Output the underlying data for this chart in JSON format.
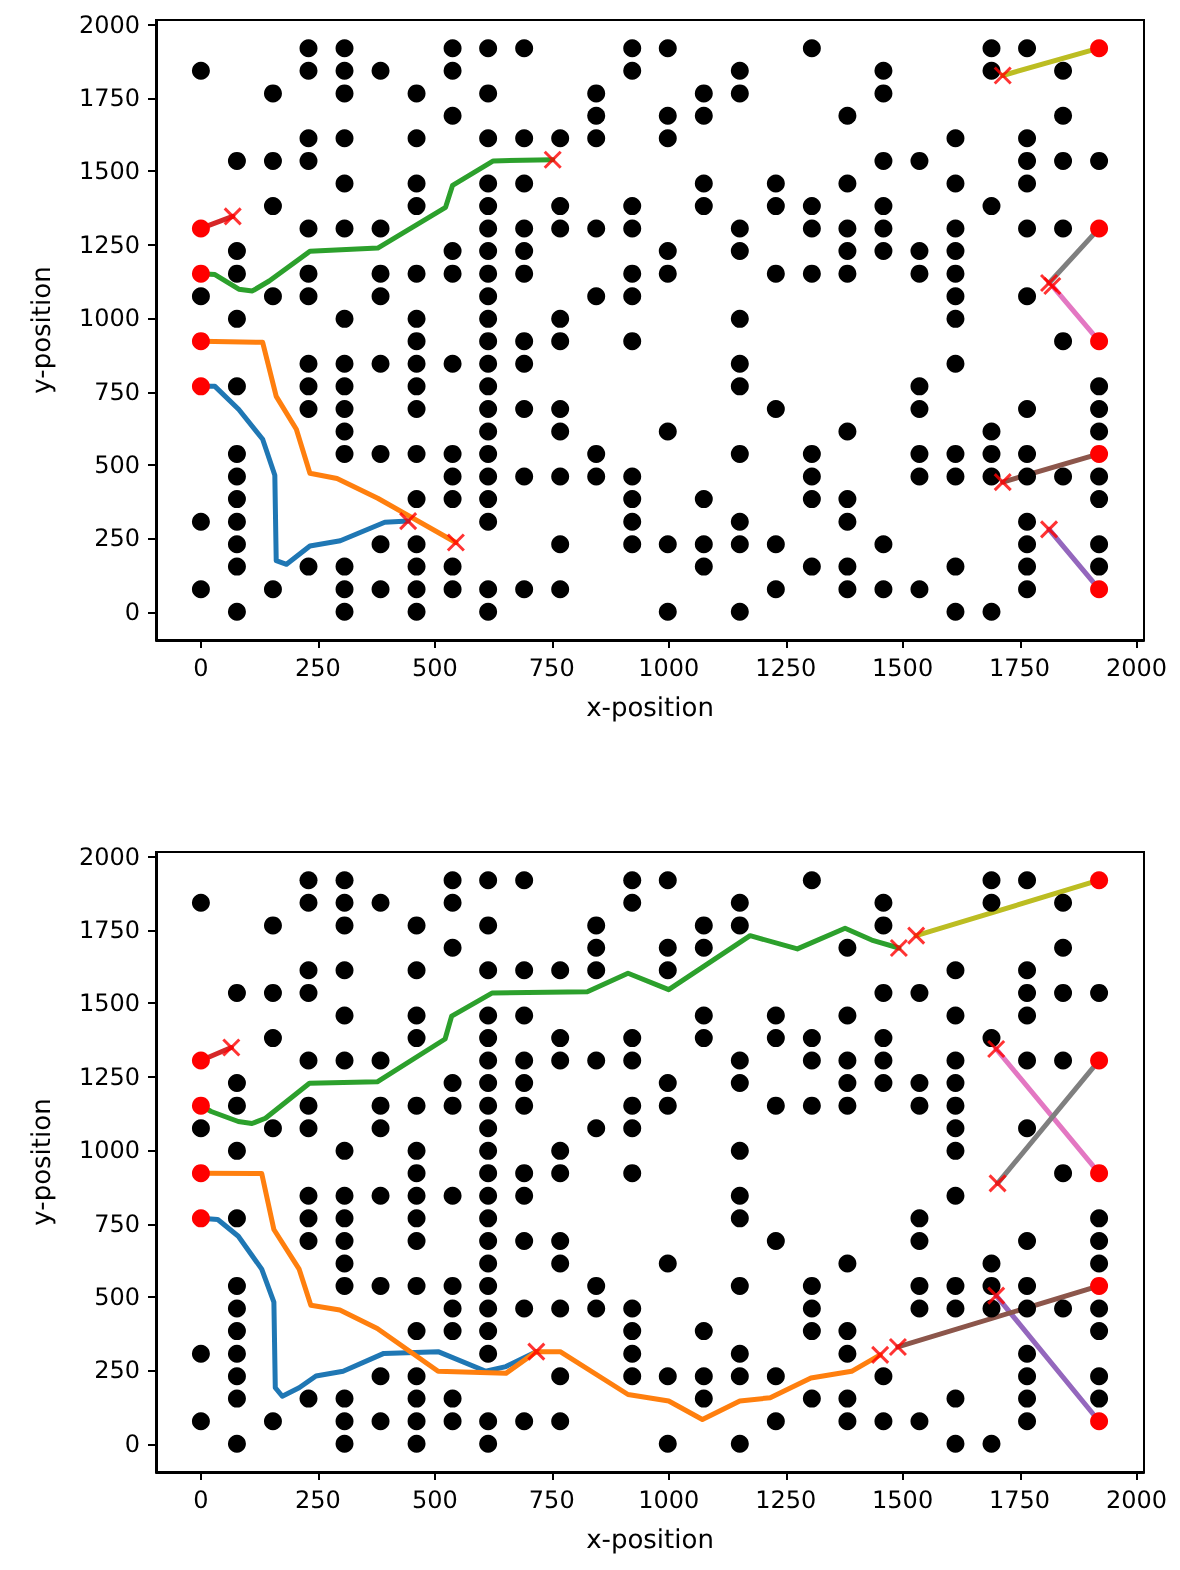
{
  "chart_data": [
    {
      "type": "scatter",
      "xlabel": "x-position",
      "ylabel": "y-position",
      "xlim": [
        -96,
        2016
      ],
      "ylim": [
        -96,
        2016
      ],
      "xticks": [
        0,
        250,
        500,
        750,
        1000,
        1250,
        1500,
        1750,
        2000
      ],
      "yticks": [
        0,
        250,
        500,
        750,
        1000,
        1250,
        1500,
        1750,
        2000
      ],
      "line_style": "solid",
      "series": [
        {
          "type": "scatter",
          "marker": "circle",
          "color": "#000000",
          "x": [
            230,
            307,
            538,
            614,
            691,
            922,
            998,
            1306,
            1690,
            1766,
            0,
            230,
            307,
            384,
            538,
            922,
            1152,
            1459,
            1690,
            1843,
            154,
            307,
            461,
            614,
            845,
            1075,
            1152,
            1459,
            538,
            845,
            998,
            1075,
            1382,
            1843,
            230,
            307,
            461,
            614,
            691,
            768,
            845,
            998,
            1613,
            1766,
            77,
            154,
            230,
            1459,
            1536,
            1766,
            1843,
            1920,
            307,
            461,
            614,
            691,
            1075,
            1229,
            1382,
            1613,
            1766,
            154,
            461,
            614,
            768,
            922,
            1075,
            1229,
            1306,
            1459,
            1690,
            230,
            307,
            384,
            614,
            691,
            768,
            845,
            922,
            1152,
            1306,
            1382,
            1459,
            1613,
            1766,
            1843,
            77,
            538,
            614,
            691,
            998,
            1152,
            1382,
            1459,
            1536,
            1613,
            77,
            230,
            384,
            461,
            538,
            614,
            691,
            922,
            998,
            1229,
            1306,
            1382,
            1536,
            1613,
            0,
            154,
            230,
            384,
            614,
            845,
            922,
            1613,
            1766,
            77,
            307,
            461,
            614,
            768,
            1152,
            1613,
            461,
            614,
            691,
            768,
            922,
            1843,
            230,
            307,
            384,
            461,
            538,
            614,
            691,
            1152,
            1613,
            77,
            230,
            307,
            461,
            614,
            1152,
            1536,
            1920,
            230,
            307,
            461,
            614,
            691,
            768,
            1229,
            1536,
            1766,
            1920,
            307,
            614,
            768,
            998,
            1382,
            1690,
            1920,
            77,
            307,
            384,
            461,
            538,
            614,
            845,
            1152,
            1306,
            1536,
            1613,
            1690,
            1766,
            77,
            538,
            614,
            691,
            768,
            845,
            922,
            1306,
            1536,
            1613,
            1690,
            1766,
            1843,
            1920,
            77,
            461,
            538,
            614,
            922,
            1075,
            1306,
            1382,
            1920,
            0,
            77,
            614,
            922,
            1152,
            1382,
            1766,
            77,
            384,
            461,
            768,
            922,
            998,
            1075,
            1152,
            1229,
            1459,
            1766,
            1920,
            77,
            230,
            307,
            461,
            538,
            1075,
            1306,
            1382,
            1613,
            1766,
            1920,
            0,
            154,
            307,
            384,
            461,
            538,
            614,
            691,
            768,
            1229,
            1382,
            1459,
            1536,
            1766,
            77,
            307,
            461,
            614,
            998,
            1152,
            1613,
            1690
          ],
          "values": [
            1920,
            1920,
            1920,
            1920,
            1920,
            1920,
            1920,
            1920,
            1920,
            1920,
            1843,
            1843,
            1843,
            1843,
            1843,
            1843,
            1843,
            1843,
            1843,
            1843,
            1766,
            1766,
            1766,
            1766,
            1766,
            1766,
            1766,
            1766,
            1690,
            1690,
            1690,
            1690,
            1690,
            1690,
            1613,
            1613,
            1613,
            1613,
            1613,
            1613,
            1613,
            1613,
            1613,
            1613,
            1536,
            1536,
            1536,
            1536,
            1536,
            1536,
            1536,
            1536,
            1459,
            1459,
            1459,
            1459,
            1459,
            1459,
            1459,
            1459,
            1459,
            1382,
            1382,
            1382,
            1382,
            1382,
            1382,
            1382,
            1382,
            1382,
            1382,
            1306,
            1306,
            1306,
            1306,
            1306,
            1306,
            1306,
            1306,
            1306,
            1306,
            1306,
            1306,
            1306,
            1306,
            1306,
            1229,
            1229,
            1229,
            1229,
            1229,
            1229,
            1229,
            1229,
            1229,
            1229,
            1152,
            1152,
            1152,
            1152,
            1152,
            1152,
            1152,
            1152,
            1152,
            1152,
            1152,
            1152,
            1152,
            1152,
            1075,
            1075,
            1075,
            1075,
            1075,
            1075,
            1075,
            1075,
            1075,
            998,
            998,
            998,
            998,
            998,
            998,
            998,
            922,
            922,
            922,
            922,
            922,
            922,
            845,
            845,
            845,
            845,
            845,
            845,
            845,
            845,
            845,
            768,
            768,
            768,
            768,
            768,
            768,
            768,
            768,
            691,
            691,
            691,
            691,
            691,
            691,
            691,
            691,
            691,
            691,
            614,
            614,
            614,
            614,
            614,
            614,
            614,
            538,
            538,
            538,
            538,
            538,
            538,
            538,
            538,
            538,
            538,
            538,
            538,
            538,
            461,
            461,
            461,
            461,
            461,
            461,
            461,
            461,
            461,
            461,
            461,
            461,
            461,
            461,
            384,
            384,
            384,
            384,
            384,
            384,
            384,
            384,
            384,
            307,
            307,
            307,
            307,
            307,
            307,
            307,
            230,
            230,
            230,
            230,
            230,
            230,
            230,
            230,
            230,
            230,
            230,
            230,
            154,
            154,
            154,
            154,
            154,
            154,
            154,
            154,
            154,
            154,
            154,
            77,
            77,
            77,
            77,
            77,
            77,
            77,
            77,
            77,
            77,
            77,
            77,
            77,
            77,
            0,
            0,
            0,
            0,
            0,
            0,
            0,
            0
          ]
        },
        {
          "type": "line",
          "color": "#1f77b4",
          "x": [
            0,
            30,
            81,
            132,
            158,
            161,
            183,
            233,
            298,
            393,
            443
          ],
          "values": [
            768,
            768,
            689,
            588,
            465,
            174,
            162,
            224,
            242,
            305,
            309
          ]
        },
        {
          "type": "line",
          "color": "#ff7f0e",
          "x": [
            0,
            132,
            161,
            204,
            233,
            291,
            378,
            545
          ],
          "values": [
            922,
            918,
            734,
            622,
            472,
            454,
            387,
            236
          ]
        },
        {
          "type": "line",
          "color": "#2ca02c",
          "x": [
            0,
            30,
            81,
            110,
            146,
            233,
            378,
            523,
            538,
            625,
            752
          ],
          "values": [
            1152,
            1149,
            1099,
            1093,
            1127,
            1228,
            1239,
            1378,
            1453,
            1536,
            1540
          ]
        },
        {
          "type": "line",
          "color": "#d62728",
          "x": [
            0,
            68
          ],
          "values": [
            1306,
            1347
          ]
        },
        {
          "type": "line",
          "color": "#9467bd",
          "x": [
            1920,
            1813
          ],
          "values": [
            77,
            281
          ]
        },
        {
          "type": "line",
          "color": "#8c564b",
          "x": [
            1920,
            1714
          ],
          "values": [
            538,
            442
          ]
        },
        {
          "type": "line",
          "color": "#e377c2",
          "x": [
            1920,
            1820
          ],
          "values": [
            922,
            1110
          ]
        },
        {
          "type": "line",
          "color": "#7f7f7f",
          "x": [
            1920,
            1813
          ],
          "values": [
            1306,
            1120
          ]
        },
        {
          "type": "line",
          "color": "#bcbd22",
          "x": [
            1920,
            1714
          ],
          "values": [
            1920,
            1827
          ]
        },
        {
          "type": "scatter",
          "marker": "circle",
          "color": "#ff0000",
          "x": [
            0,
            0,
            0,
            0,
            1920,
            1920,
            1920,
            1920,
            1920
          ],
          "values": [
            1306,
            1152,
            922,
            768,
            1920,
            1306,
            922,
            538,
            77
          ]
        },
        {
          "type": "scatter",
          "marker": "cross",
          "color": "#ff0000",
          "x": [
            68,
            752,
            443,
            545,
            1714,
            1813,
            1820,
            1714,
            1813
          ],
          "values": [
            1347,
            1540,
            309,
            236,
            1827,
            1120,
            1110,
            442,
            281
          ]
        }
      ]
    },
    {
      "type": "scatter",
      "xlabel": "x-position",
      "ylabel": "y-position",
      "xlim": [
        -96,
        2016
      ],
      "ylim": [
        -96,
        2016
      ],
      "xticks": [
        0,
        250,
        500,
        750,
        1000,
        1250,
        1500,
        1750,
        2000
      ],
      "yticks": [
        0,
        250,
        500,
        750,
        1000,
        1250,
        1500,
        1750,
        2000
      ],
      "line_style": "solid",
      "series": [
        {
          "type": "scatter",
          "marker": "circle",
          "color": "#000000",
          "x": [
            230,
            307,
            538,
            614,
            691,
            922,
            998,
            1306,
            1690,
            1766,
            0,
            230,
            307,
            384,
            538,
            922,
            1152,
            1459,
            1690,
            1843,
            154,
            307,
            461,
            614,
            845,
            1075,
            1152,
            1459,
            538,
            845,
            998,
            1075,
            1382,
            1843,
            230,
            307,
            461,
            614,
            691,
            768,
            845,
            998,
            1613,
            1766,
            77,
            154,
            230,
            1459,
            1536,
            1766,
            1843,
            1920,
            307,
            461,
            614,
            691,
            1075,
            1229,
            1382,
            1613,
            1766,
            154,
            461,
            614,
            768,
            922,
            1075,
            1229,
            1306,
            1459,
            1690,
            230,
            307,
            384,
            614,
            691,
            768,
            845,
            922,
            1152,
            1306,
            1382,
            1459,
            1613,
            1766,
            1843,
            77,
            538,
            614,
            691,
            998,
            1152,
            1382,
            1459,
            1536,
            1613,
            77,
            230,
            384,
            461,
            538,
            614,
            691,
            922,
            998,
            1229,
            1306,
            1382,
            1536,
            1613,
            0,
            154,
            230,
            384,
            614,
            845,
            922,
            1613,
            1766,
            77,
            307,
            461,
            614,
            768,
            1152,
            1613,
            461,
            614,
            691,
            768,
            922,
            1843,
            230,
            307,
            384,
            461,
            538,
            614,
            691,
            1152,
            1613,
            77,
            230,
            307,
            461,
            614,
            1152,
            1536,
            1920,
            230,
            307,
            461,
            614,
            691,
            768,
            1229,
            1536,
            1766,
            1920,
            307,
            614,
            768,
            998,
            1382,
            1690,
            1920,
            77,
            307,
            384,
            461,
            538,
            614,
            845,
            1152,
            1306,
            1536,
            1613,
            1690,
            1766,
            77,
            538,
            614,
            691,
            768,
            845,
            922,
            1306,
            1536,
            1613,
            1690,
            1766,
            1843,
            1920,
            77,
            461,
            538,
            614,
            922,
            1075,
            1306,
            1382,
            1920,
            0,
            77,
            614,
            922,
            1152,
            1382,
            1766,
            77,
            384,
            461,
            768,
            922,
            998,
            1075,
            1152,
            1229,
            1459,
            1766,
            1920,
            77,
            230,
            307,
            461,
            538,
            1075,
            1306,
            1382,
            1613,
            1766,
            1920,
            0,
            154,
            307,
            384,
            461,
            538,
            614,
            691,
            768,
            1229,
            1382,
            1459,
            1536,
            1766,
            77,
            307,
            461,
            614,
            998,
            1152,
            1613,
            1690
          ],
          "values": [
            1920,
            1920,
            1920,
            1920,
            1920,
            1920,
            1920,
            1920,
            1920,
            1920,
            1843,
            1843,
            1843,
            1843,
            1843,
            1843,
            1843,
            1843,
            1843,
            1843,
            1766,
            1766,
            1766,
            1766,
            1766,
            1766,
            1766,
            1766,
            1690,
            1690,
            1690,
            1690,
            1690,
            1690,
            1613,
            1613,
            1613,
            1613,
            1613,
            1613,
            1613,
            1613,
            1613,
            1613,
            1536,
            1536,
            1536,
            1536,
            1536,
            1536,
            1536,
            1536,
            1459,
            1459,
            1459,
            1459,
            1459,
            1459,
            1459,
            1459,
            1459,
            1382,
            1382,
            1382,
            1382,
            1382,
            1382,
            1382,
            1382,
            1382,
            1382,
            1306,
            1306,
            1306,
            1306,
            1306,
            1306,
            1306,
            1306,
            1306,
            1306,
            1306,
            1306,
            1306,
            1306,
            1306,
            1229,
            1229,
            1229,
            1229,
            1229,
            1229,
            1229,
            1229,
            1229,
            1229,
            1152,
            1152,
            1152,
            1152,
            1152,
            1152,
            1152,
            1152,
            1152,
            1152,
            1152,
            1152,
            1152,
            1152,
            1075,
            1075,
            1075,
            1075,
            1075,
            1075,
            1075,
            1075,
            1075,
            998,
            998,
            998,
            998,
            998,
            998,
            998,
            922,
            922,
            922,
            922,
            922,
            922,
            845,
            845,
            845,
            845,
            845,
            845,
            845,
            845,
            845,
            768,
            768,
            768,
            768,
            768,
            768,
            768,
            768,
            691,
            691,
            691,
            691,
            691,
            691,
            691,
            691,
            691,
            691,
            614,
            614,
            614,
            614,
            614,
            614,
            614,
            538,
            538,
            538,
            538,
            538,
            538,
            538,
            538,
            538,
            538,
            538,
            538,
            538,
            461,
            461,
            461,
            461,
            461,
            461,
            461,
            461,
            461,
            461,
            461,
            461,
            461,
            461,
            384,
            384,
            384,
            384,
            384,
            384,
            384,
            384,
            384,
            307,
            307,
            307,
            307,
            307,
            307,
            307,
            230,
            230,
            230,
            230,
            230,
            230,
            230,
            230,
            230,
            230,
            230,
            230,
            154,
            154,
            154,
            154,
            154,
            154,
            154,
            154,
            154,
            154,
            154,
            77,
            77,
            77,
            77,
            77,
            77,
            77,
            77,
            77,
            77,
            77,
            77,
            77,
            77,
            0,
            0,
            0,
            0,
            0,
            0,
            0,
            0
          ]
        },
        {
          "type": "line",
          "color": "#1f77b4",
          "x": [
            0,
            36,
            80,
            130,
            156,
            159,
            174,
            210,
            246,
            304,
            391,
            507,
            609,
            652,
            717
          ],
          "values": [
            768,
            764,
            707,
            595,
            483,
            191,
            162,
            191,
            231,
            247,
            308,
            314,
            247,
            263,
            314
          ]
        },
        {
          "type": "line",
          "color": "#ff7f0e",
          "x": [
            0,
            130,
            156,
            210,
            235,
            297,
            377,
            507,
            652,
            717,
            768,
            913,
            1000,
            1072,
            1152,
            1217,
            1304,
            1391,
            1452
          ],
          "values": [
            922,
            921,
            730,
            595,
            472,
            456,
            393,
            247,
            240,
            314,
            314,
            168,
            146,
            83,
            146,
            157,
            224,
            247,
            303
          ]
        },
        {
          "type": "line",
          "color": "#2ca02c",
          "x": [
            0,
            22,
            80,
            109,
            138,
            232,
            377,
            522,
            536,
            623,
            826,
            913,
            1000,
            1174,
            1275,
            1377,
            1434,
            1492
          ],
          "values": [
            1152,
            1132,
            1098,
            1091,
            1109,
            1228,
            1233,
            1379,
            1457,
            1536,
            1540,
            1603,
            1547,
            1731,
            1686,
            1756,
            1716,
            1689
          ]
        },
        {
          "type": "line",
          "color": "#d62728",
          "x": [
            0,
            65
          ],
          "values": [
            1306,
            1350
          ]
        },
        {
          "type": "line",
          "color": "#9467bd",
          "x": [
            1920,
            1700
          ],
          "values": [
            77,
            505
          ]
        },
        {
          "type": "line",
          "color": "#8c564b",
          "x": [
            1920,
            1490
          ],
          "values": [
            538,
            330
          ]
        },
        {
          "type": "line",
          "color": "#e377c2",
          "x": [
            1920,
            1700
          ],
          "values": [
            922,
            1345
          ]
        },
        {
          "type": "line",
          "color": "#7f7f7f",
          "x": [
            1920,
            1703
          ],
          "values": [
            1306,
            887
          ]
        },
        {
          "type": "line",
          "color": "#bcbd22",
          "x": [
            1920,
            1529
          ],
          "values": [
            1920,
            1731
          ]
        },
        {
          "type": "scatter",
          "marker": "circle",
          "color": "#ff0000",
          "x": [
            0,
            0,
            0,
            0,
            1920,
            1920,
            1920,
            1920,
            1920
          ],
          "values": [
            1306,
            1152,
            922,
            768,
            1920,
            1306,
            922,
            538,
            77
          ]
        },
        {
          "type": "scatter",
          "marker": "cross",
          "color": "#ff0000",
          "x": [
            65,
            1492,
            717,
            1452,
            1529,
            1703,
            1700,
            1490,
            1700
          ],
          "values": [
            1350,
            1689,
            314,
            303,
            1731,
            887,
            1345,
            330,
            505
          ]
        }
      ]
    }
  ]
}
